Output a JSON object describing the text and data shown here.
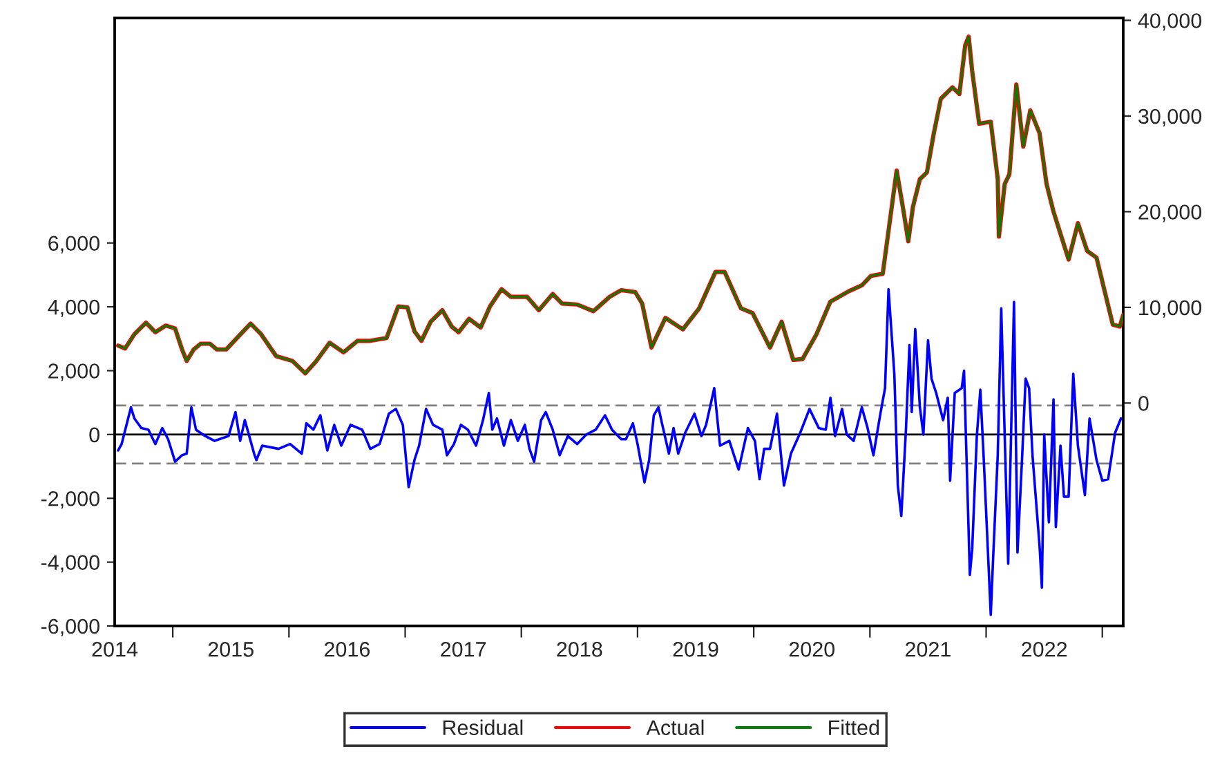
{
  "chart_data": {
    "type": "line",
    "xlim": [
      2014.5,
      2023.18
    ],
    "ylim": [
      -6000,
      13050
    ],
    "y2lim": [
      -23300,
      40250
    ],
    "xticks": [
      {
        "value": 2014.5,
        "label": "2014"
      },
      {
        "value": 2015,
        "label": null
      },
      {
        "value": 2015.5,
        "label": "2015"
      },
      {
        "value": 2016,
        "label": null
      },
      {
        "value": 2016.5,
        "label": "2016"
      },
      {
        "value": 2017,
        "label": null
      },
      {
        "value": 2017.5,
        "label": "2017"
      },
      {
        "value": 2018,
        "label": null
      },
      {
        "value": 2018.5,
        "label": "2018"
      },
      {
        "value": 2019,
        "label": null
      },
      {
        "value": 2019.5,
        "label": "2019"
      },
      {
        "value": 2020,
        "label": null
      },
      {
        "value": 2020.5,
        "label": "2020"
      },
      {
        "value": 2021,
        "label": null
      },
      {
        "value": 2021.5,
        "label": "2021"
      },
      {
        "value": 2022,
        "label": null
      },
      {
        "value": 2022.5,
        "label": "2022"
      },
      {
        "value": 2023,
        "label": null
      }
    ],
    "yticks": [
      {
        "value": -6000,
        "label": "-6,000"
      },
      {
        "value": -4000,
        "label": "-4,000"
      },
      {
        "value": -2000,
        "label": "-2,000"
      },
      0,
      {
        "value": 2000,
        "label": "2,000"
      },
      {
        "value": 4000,
        "label": "4,000"
      },
      {
        "value": 6000,
        "label": "6,000"
      }
    ],
    "y2ticks": [
      0,
      {
        "value": 10000,
        "label": "10,000"
      },
      {
        "value": 20000,
        "label": "20,000"
      },
      {
        "value": 30000,
        "label": "30,000"
      },
      {
        "value": 40000,
        "label": "40,000"
      }
    ],
    "grid": false,
    "legend": "bottom",
    "line_style": "solid",
    "marker": "none",
    "ref_lines": [
      {
        "axis": "y",
        "value": 0,
        "color": "#000000",
        "line_style": "solid"
      },
      {
        "axis": "y",
        "value": 910,
        "color": "#808080",
        "line_style": "dashed"
      },
      {
        "axis": "y",
        "value": -910,
        "color": "#808080",
        "line_style": "dashed"
      }
    ],
    "series": [
      {
        "name": "Residual",
        "color": "#0000ff",
        "axis": "y",
        "x": [
          2014.53,
          2014.56,
          2014.64,
          2014.67,
          2014.73,
          2014.79,
          2014.85,
          2014.91,
          2014.96,
          2015.02,
          2015.08,
          2015.12,
          2015.16,
          2015.2,
          2015.28,
          2015.36,
          2015.48,
          2015.54,
          2015.58,
          2015.62,
          2015.7,
          2015.72,
          2015.77,
          2015.91,
          2016.01,
          2016.11,
          2016.15,
          2016.21,
          2016.27,
          2016.33,
          2016.39,
          2016.45,
          2016.53,
          2016.63,
          2016.7,
          2016.78,
          2016.86,
          2016.92,
          2016.98,
          2017.03,
          2017.08,
          2017.12,
          2017.18,
          2017.24,
          2017.32,
          2017.36,
          2017.42,
          2017.48,
          2017.54,
          2017.61,
          2017.67,
          2017.72,
          2017.75,
          2017.79,
          2017.85,
          2017.91,
          2017.97,
          2018.03,
          2018.07,
          2018.11,
          2018.17,
          2018.21,
          2018.27,
          2018.33,
          2018.4,
          2018.48,
          2018.56,
          2018.64,
          2018.72,
          2018.78,
          2018.86,
          2018.9,
          2018.96,
          2019.0,
          2019.06,
          2019.1,
          2019.14,
          2019.18,
          2019.21,
          2019.27,
          2019.31,
          2019.35,
          2019.41,
          2019.49,
          2019.55,
          2019.59,
          2019.66,
          2019.71,
          2019.79,
          2019.87,
          2019.95,
          2020.01,
          2020.05,
          2020.09,
          2020.14,
          2020.2,
          2020.26,
          2020.32,
          2020.4,
          2020.48,
          2020.56,
          2020.62,
          2020.66,
          2020.7,
          2020.76,
          2020.8,
          2020.86,
          2020.93,
          2020.98,
          2021.03,
          2021.09,
          2021.13,
          2021.16,
          2021.21,
          2021.24,
          2021.27,
          2021.31,
          2021.34,
          2021.36,
          2021.39,
          2021.43,
          2021.46,
          2021.5,
          2021.53,
          2021.57,
          2021.63,
          2021.67,
          2021.69,
          2021.73,
          2021.79,
          2021.81,
          2021.86,
          2021.88,
          2021.92,
          2021.95,
          2021.98,
          2022.04,
          2022.06,
          2022.1,
          2022.13,
          2022.19,
          2022.24,
          2022.27,
          2022.31,
          2022.34,
          2022.37,
          2022.4,
          2022.46,
          2022.48,
          2022.5,
          2022.54,
          2022.58,
          2022.6,
          2022.64,
          2022.67,
          2022.71,
          2022.75,
          2022.79,
          2022.85,
          2022.89,
          2022.95,
          2023.0,
          2023.05,
          2023.11,
          2023.16
        ],
        "values": [
          -500,
          -300,
          850,
          500,
          200,
          150,
          -300,
          200,
          -150,
          -850,
          -650,
          -600,
          850,
          150,
          -50,
          -200,
          -50,
          700,
          -200,
          450,
          -600,
          -800,
          -350,
          -450,
          -300,
          -600,
          350,
          150,
          600,
          -500,
          300,
          -350,
          300,
          150,
          -450,
          -300,
          650,
          800,
          300,
          -1650,
          -800,
          -350,
          800,
          300,
          150,
          -650,
          -300,
          300,
          150,
          -350,
          450,
          1300,
          150,
          500,
          -350,
          450,
          -200,
          300,
          -450,
          -850,
          450,
          700,
          150,
          -650,
          -50,
          -300,
          0,
          150,
          600,
          150,
          -150,
          -150,
          350,
          -300,
          -1500,
          -800,
          600,
          850,
          350,
          -600,
          200,
          -600,
          50,
          650,
          -50,
          300,
          1450,
          -350,
          -200,
          -1100,
          200,
          -200,
          -1400,
          -450,
          -450,
          650,
          -1600,
          -600,
          50,
          800,
          200,
          150,
          1150,
          -50,
          800,
          0,
          -200,
          850,
          200,
          -650,
          650,
          1450,
          4550,
          1900,
          -1600,
          -2550,
          150,
          2800,
          700,
          3300,
          850,
          0,
          2950,
          1750,
          1300,
          450,
          1150,
          -1450,
          1300,
          1450,
          2000,
          -4400,
          -3600,
          -50,
          1400,
          -800,
          -5650,
          -3900,
          -650,
          3950,
          -4050,
          4150,
          -3700,
          -700,
          1750,
          1450,
          -700,
          -3500,
          -4800,
          0,
          -2750,
          1100,
          -2900,
          -350,
          -1950,
          -1950,
          1900,
          -350,
          -1900,
          500,
          -800,
          -1450,
          -1400,
          50,
          500
        ]
      },
      {
        "name": "Actual",
        "color": "#ff0000",
        "axis": "y2",
        "x": [
          2014.53,
          2014.59,
          2014.67,
          2014.77,
          2014.85,
          2014.94,
          2015.02,
          2015.08,
          2015.12,
          2015.18,
          2015.24,
          2015.32,
          2015.38,
          2015.46,
          2015.56,
          2015.67,
          2015.76,
          2015.89,
          2016.03,
          2016.14,
          2016.23,
          2016.35,
          2016.47,
          2016.59,
          2016.7,
          2016.84,
          2016.94,
          2017.02,
          2017.08,
          2017.14,
          2017.22,
          2017.32,
          2017.4,
          2017.46,
          2017.55,
          2017.65,
          2017.73,
          2017.83,
          2017.91,
          2018.05,
          2018.15,
          2018.27,
          2018.35,
          2018.48,
          2018.62,
          2018.76,
          2018.86,
          2018.98,
          2019.04,
          2019.12,
          2019.24,
          2019.39,
          2019.53,
          2019.67,
          2019.75,
          2019.89,
          2019.99,
          2020.14,
          2020.24,
          2020.34,
          2020.42,
          2020.54,
          2020.66,
          2020.82,
          2020.93,
          2021.01,
          2021.11,
          2021.15,
          2021.23,
          2021.29,
          2021.33,
          2021.37,
          2021.43,
          2021.49,
          2021.55,
          2021.61,
          2021.71,
          2021.77,
          2021.82,
          2021.85,
          2021.88,
          2021.94,
          2022.04,
          2022.1,
          2022.11,
          2022.16,
          2022.2,
          2022.26,
          2022.32,
          2022.38,
          2022.46,
          2022.52,
          2022.58,
          2022.71,
          2022.79,
          2022.87,
          2022.95,
          2023.09,
          2023.15,
          2023.18
        ],
        "values": [
          6000,
          5700,
          7200,
          8400,
          7400,
          8100,
          7800,
          5600,
          4400,
          5600,
          6200,
          6200,
          5600,
          5600,
          6900,
          8300,
          7200,
          4900,
          4400,
          3100,
          4300,
          6300,
          5300,
          6500,
          6500,
          6800,
          10100,
          10000,
          7500,
          6500,
          8500,
          9700,
          8000,
          7400,
          8800,
          7900,
          10100,
          11900,
          11100,
          11100,
          9700,
          11400,
          10400,
          10300,
          9600,
          11100,
          11800,
          11600,
          10400,
          5800,
          8900,
          7700,
          9900,
          13700,
          13700,
          9900,
          9400,
          5800,
          8500,
          4500,
          4600,
          7200,
          10600,
          11700,
          12300,
          13300,
          13500,
          17100,
          24300,
          20000,
          16900,
          20500,
          23400,
          24100,
          28200,
          31800,
          33000,
          32300,
          37400,
          38300,
          34700,
          29200,
          29400,
          23400,
          17400,
          22900,
          23900,
          33300,
          26800,
          30600,
          28200,
          22900,
          20000,
          15000,
          18800,
          15900,
          15200,
          8200,
          8000,
          9200
        ]
      },
      {
        "name": "Fitted",
        "color": "#008000",
        "axis": "y2",
        "x": [
          2014.53,
          2014.59,
          2014.67,
          2014.77,
          2014.85,
          2014.94,
          2015.02,
          2015.08,
          2015.12,
          2015.18,
          2015.24,
          2015.32,
          2015.38,
          2015.46,
          2015.56,
          2015.67,
          2015.76,
          2015.89,
          2016.03,
          2016.14,
          2016.23,
          2016.35,
          2016.47,
          2016.59,
          2016.7,
          2016.84,
          2016.94,
          2017.02,
          2017.08,
          2017.14,
          2017.22,
          2017.32,
          2017.4,
          2017.46,
          2017.55,
          2017.65,
          2017.73,
          2017.83,
          2017.91,
          2018.05,
          2018.15,
          2018.27,
          2018.35,
          2018.48,
          2018.62,
          2018.76,
          2018.86,
          2018.98,
          2019.04,
          2019.12,
          2019.24,
          2019.39,
          2019.53,
          2019.67,
          2019.75,
          2019.89,
          2019.99,
          2020.14,
          2020.24,
          2020.34,
          2020.42,
          2020.54,
          2020.66,
          2020.82,
          2020.93,
          2021.01,
          2021.11,
          2021.15,
          2021.23,
          2021.29,
          2021.33,
          2021.37,
          2021.43,
          2021.49,
          2021.55,
          2021.61,
          2021.71,
          2021.77,
          2021.82,
          2021.85,
          2021.88,
          2021.94,
          2022.04,
          2022.1,
          2022.11,
          2022.16,
          2022.2,
          2022.26,
          2022.32,
          2022.38,
          2022.46,
          2022.52,
          2022.58,
          2022.71,
          2022.79,
          2022.87,
          2022.95,
          2023.09,
          2023.15,
          2023.18
        ],
        "values": [
          6000,
          5700,
          7200,
          8400,
          7400,
          8100,
          7800,
          5600,
          4400,
          5600,
          6200,
          6200,
          5600,
          5600,
          6900,
          8300,
          7200,
          4900,
          4400,
          3100,
          4300,
          6300,
          5300,
          6500,
          6500,
          6800,
          10100,
          10000,
          7500,
          6500,
          8500,
          9700,
          8000,
          7400,
          8800,
          7900,
          10100,
          11900,
          11100,
          11100,
          9700,
          11400,
          10400,
          10300,
          9600,
          11100,
          11800,
          11600,
          10400,
          5800,
          8900,
          7700,
          9900,
          13700,
          13700,
          9900,
          9400,
          5800,
          8500,
          4500,
          4600,
          7200,
          10600,
          11700,
          12300,
          13300,
          13500,
          17100,
          24300,
          20000,
          16900,
          20500,
          23400,
          24100,
          28200,
          31800,
          33000,
          32300,
          37400,
          38300,
          34700,
          29200,
          29400,
          23400,
          17400,
          22900,
          23900,
          33300,
          26800,
          30600,
          28200,
          22900,
          20000,
          15000,
          18800,
          15900,
          15200,
          8200,
          8000,
          9200
        ]
      }
    ]
  }
}
